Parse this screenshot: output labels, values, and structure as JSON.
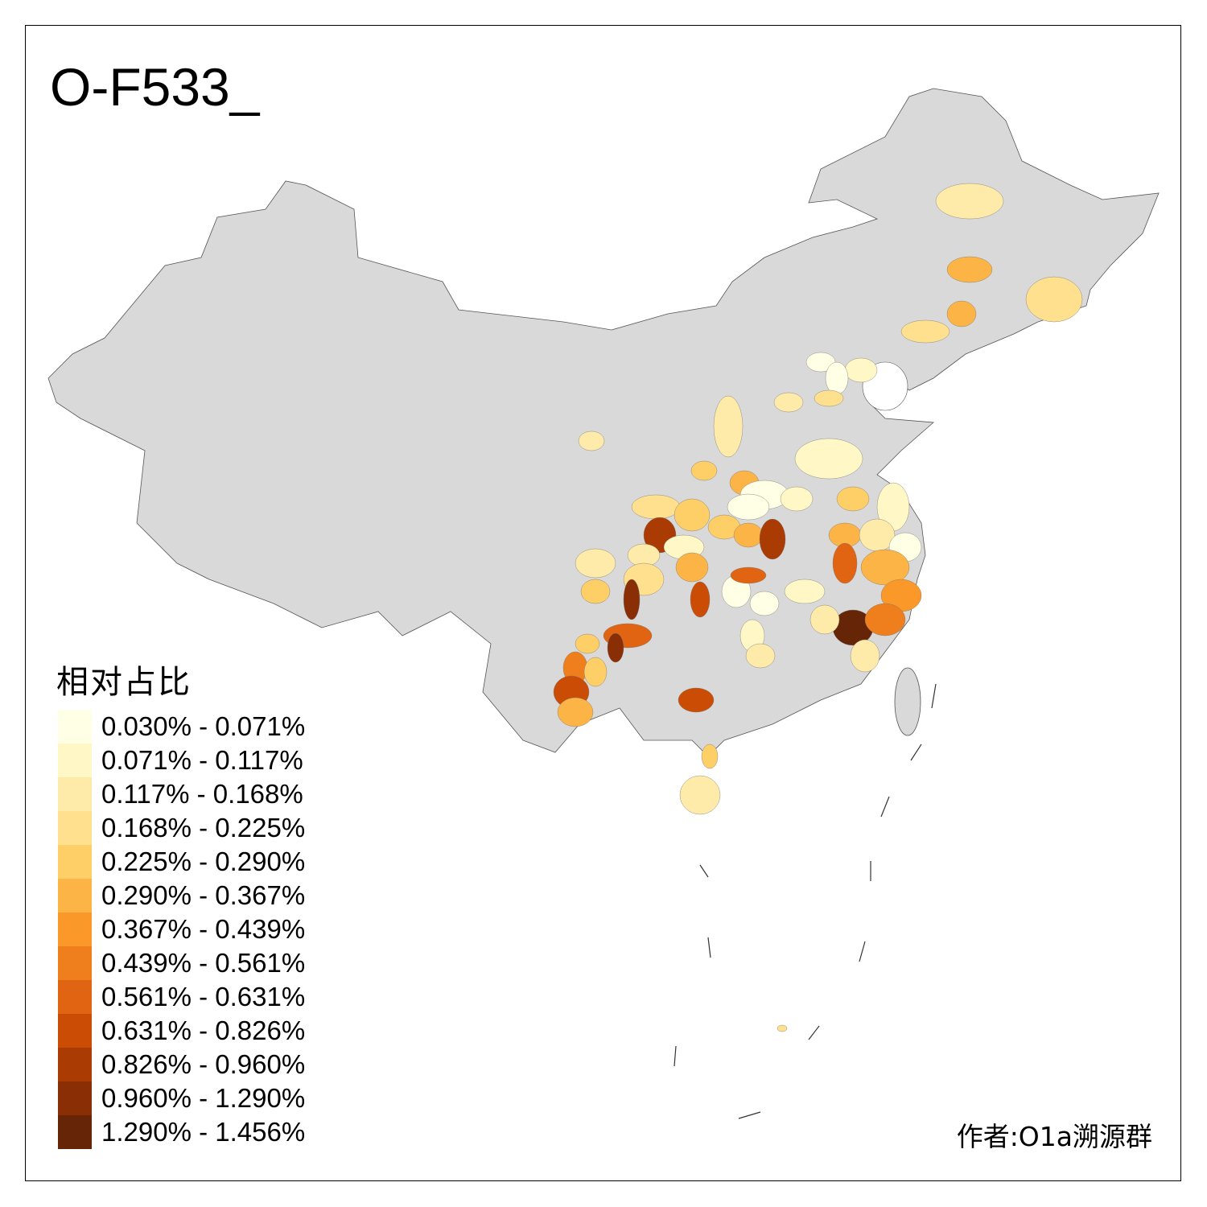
{
  "title": "O-F533_",
  "legend": {
    "title": "相对占比",
    "items": [
      {
        "label": "0.030% - 0.071%",
        "color": "#FFFFE5"
      },
      {
        "label": "0.071% - 0.117%",
        "color": "#FFF7C6"
      },
      {
        "label": "0.117% - 0.168%",
        "color": "#FEEBAA"
      },
      {
        "label": "0.168% - 0.225%",
        "color": "#FEE08F"
      },
      {
        "label": "0.225% - 0.290%",
        "color": "#FECE67"
      },
      {
        "label": "0.290% - 0.367%",
        "color": "#FDB446"
      },
      {
        "label": "0.367% - 0.439%",
        "color": "#FA992A"
      },
      {
        "label": "0.439% - 0.561%",
        "color": "#EF7F1C"
      },
      {
        "label": "0.561% - 0.631%",
        "color": "#E06411"
      },
      {
        "label": "0.631% - 0.826%",
        "color": "#CB4C04"
      },
      {
        "label": "0.826% - 0.960%",
        "color": "#AA3C03"
      },
      {
        "label": "0.960% - 1.290%",
        "color": "#8A2E05"
      },
      {
        "label": "1.290% - 1.456%",
        "color": "#662507"
      }
    ]
  },
  "base_color": "#D9D9D9",
  "author": "作者:O1a溯源群"
}
